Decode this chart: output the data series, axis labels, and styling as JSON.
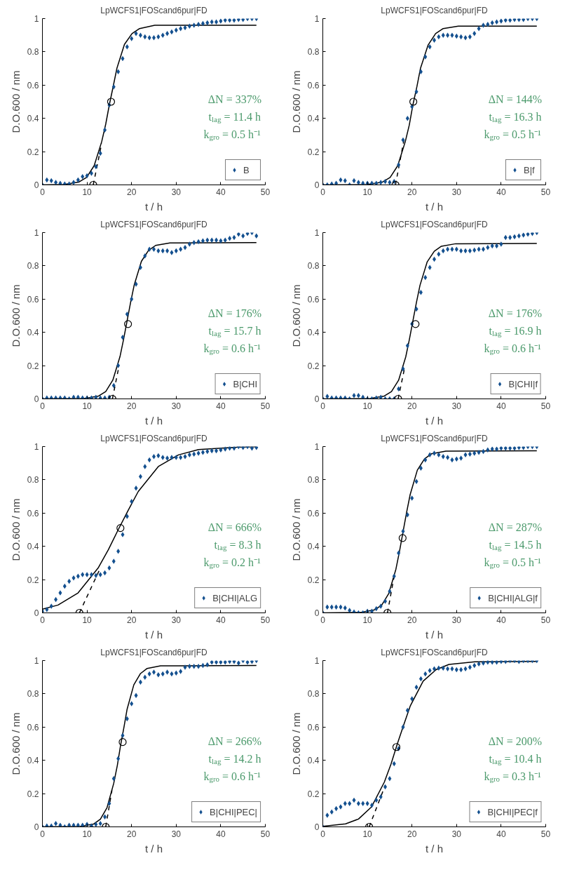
{
  "chart_data": [
    {
      "type": "scatter",
      "title": "LpWCFS1|FOScand6pur|FD",
      "xlabel": "t / h",
      "ylabel": "D.O.600 / nm",
      "xlim": [
        0,
        50
      ],
      "xticks": [
        0,
        10,
        20,
        30,
        40,
        50
      ],
      "ylim": [
        0,
        1
      ],
      "yticks": [
        0,
        0.2,
        0.4,
        0.6,
        0.8,
        1
      ],
      "grid": false,
      "legend": "bottom right",
      "annotations": [
        "ΔN = 337%",
        "t$_{lag}$ = 11.4 h",
        "k$_{gro}$ = 0.5 h⁻¹"
      ],
      "x": [
        0,
        1,
        2,
        3,
        4,
        5,
        6,
        7,
        8,
        9,
        10,
        11,
        12,
        13,
        14,
        15,
        16,
        17,
        18,
        19,
        20,
        21,
        22,
        23,
        24,
        25,
        26,
        27,
        28,
        29,
        30,
        31,
        32,
        33,
        34,
        35,
        36,
        37,
        38,
        39,
        40,
        41,
        42,
        43,
        44,
        45,
        46,
        47,
        48
      ],
      "series": [
        {
          "name": "B",
          "marker": "diamond",
          "color": "#14508f",
          "values": [
            0,
            0.03,
            0.025,
            0.015,
            0.01,
            0.005,
            0.005,
            0.015,
            0.03,
            0.05,
            0.055,
            0.07,
            0.11,
            0.19,
            0.33,
            0.48,
            0.59,
            0.68,
            0.76,
            0.83,
            0.88,
            0.91,
            0.9,
            0.89,
            0.885,
            0.885,
            0.89,
            0.9,
            0.91,
            0.92,
            0.93,
            0.94,
            0.945,
            0.955,
            0.96,
            0.965,
            0.97,
            0.975,
            0.98,
            0.98,
            0.985,
            0.99,
            0.99,
            0.99,
            0.995,
            0.995,
            1,
            1,
            1
          ]
        },
        {
          "type": "line",
          "color": "#000000",
          "line_style": "solid",
          "x": [
            0,
            4.8,
            8.2,
            9.9,
            11.6,
            13.3,
            14.2,
            15,
            15.9,
            16.7,
            18.4,
            20.1,
            21.8,
            25.2,
            48
          ],
          "values": [
            0,
            0.002,
            0.017,
            0.045,
            0.115,
            0.26,
            0.365,
            0.48,
            0.595,
            0.7,
            0.845,
            0.91,
            0.94,
            0.96,
            0.96
          ]
        },
        {
          "type": "line",
          "color": "#000000",
          "line_style": "dashed",
          "x": [
            11.4,
            13.3
          ],
          "values": [
            0,
            0.25
          ]
        },
        {
          "type": "scatter",
          "marker": "circle",
          "color": "#000000",
          "x": [
            11.4,
            15.4
          ],
          "values": [
            0,
            0.5
          ]
        }
      ]
    },
    {
      "type": "scatter",
      "title": "LpWCFS1|FOScand6pur|FD",
      "xlabel": "t / h",
      "ylabel": "D.O.600 / nm",
      "xlim": [
        0,
        50
      ],
      "xticks": [
        0,
        10,
        20,
        30,
        40,
        50
      ],
      "ylim": [
        0,
        1
      ],
      "yticks": [
        0,
        0.2,
        0.4,
        0.6,
        0.8,
        1
      ],
      "grid": false,
      "legend": "bottom right",
      "annotations": [
        "ΔN = 144%",
        "t$_{lag}$ = 16.3 h",
        "k$_{gro}$ = 0.5 h⁻¹"
      ],
      "x": [
        0,
        1,
        2,
        3,
        4,
        5,
        6,
        7,
        8,
        9,
        10,
        11,
        12,
        13,
        14,
        15,
        16,
        17,
        18,
        19,
        20,
        21,
        22,
        23,
        24,
        25,
        26,
        27,
        28,
        29,
        30,
        31,
        32,
        33,
        34,
        35,
        36,
        37,
        38,
        39,
        40,
        41,
        42,
        43,
        44,
        45,
        46,
        47,
        48
      ],
      "series": [
        {
          "name": "B|f",
          "marker": "diamond",
          "color": "#14508f",
          "values": [
            0,
            0,
            0.005,
            0.01,
            0.03,
            0.025,
            0,
            0.025,
            0.015,
            0.01,
            0.01,
            0.01,
            0.01,
            0.015,
            0.02,
            0.015,
            0.02,
            0.12,
            0.27,
            0.4,
            0.47,
            0.56,
            0.68,
            0.77,
            0.83,
            0.87,
            0.89,
            0.9,
            0.9,
            0.9,
            0.895,
            0.89,
            0.885,
            0.89,
            0.91,
            0.94,
            0.96,
            0.965,
            0.975,
            0.98,
            0.985,
            0.99,
            0.99,
            0.995,
            0.995,
            0.995,
            1,
            1,
            1
          ]
        },
        {
          "type": "line",
          "color": "#000000",
          "line_style": "solid",
          "x": [
            0,
            10,
            13.4,
            15.1,
            16.8,
            18.5,
            19.4,
            20.2,
            21.1,
            21.9,
            23.6,
            25.3,
            27,
            30.4,
            48
          ],
          "values": [
            0,
            0.002,
            0.017,
            0.045,
            0.115,
            0.26,
            0.36,
            0.48,
            0.59,
            0.7,
            0.84,
            0.91,
            0.94,
            0.955,
            0.955
          ]
        },
        {
          "type": "line",
          "color": "#000000",
          "line_style": "dashed",
          "x": [
            16.3,
            18.2
          ],
          "values": [
            0,
            0.27
          ]
        },
        {
          "type": "scatter",
          "marker": "circle",
          "color": "#000000",
          "x": [
            16.3,
            20.3
          ],
          "values": [
            0,
            0.5
          ]
        }
      ]
    },
    {
      "type": "scatter",
      "title": "LpWCFS1|FOScand6pur|FD",
      "xlabel": "t / h",
      "ylabel": "D.O.600 / nm",
      "xlim": [
        0,
        50
      ],
      "xticks": [
        0,
        10,
        20,
        30,
        40,
        50
      ],
      "ylim": [
        0,
        1
      ],
      "yticks": [
        0,
        0.2,
        0.4,
        0.6,
        0.8,
        1
      ],
      "grid": false,
      "legend": "bottom right",
      "annotations": [
        "ΔN = 176%",
        "t$_{lag}$ = 15.7 h",
        "k$_{gro}$ = 0.6 h⁻¹"
      ],
      "x": [
        0,
        1,
        2,
        3,
        4,
        5,
        6,
        7,
        8,
        9,
        10,
        11,
        12,
        13,
        14,
        15,
        16,
        17,
        18,
        19,
        20,
        21,
        22,
        23,
        24,
        25,
        26,
        27,
        28,
        29,
        30,
        31,
        32,
        33,
        34,
        35,
        36,
        37,
        38,
        39,
        40,
        41,
        42,
        43,
        44,
        45,
        46,
        47,
        48
      ],
      "series": [
        {
          "name": "B|CHI",
          "marker": "diamond",
          "color": "#14508f",
          "values": [
            0,
            0.005,
            0.005,
            0.005,
            0.005,
            0.005,
            0,
            0.01,
            0.01,
            0.005,
            0.005,
            0.005,
            0.01,
            0.005,
            0.005,
            0.01,
            0.08,
            0.2,
            0.37,
            0.51,
            0.6,
            0.69,
            0.79,
            0.86,
            0.9,
            0.9,
            0.89,
            0.89,
            0.89,
            0.88,
            0.89,
            0.9,
            0.91,
            0.93,
            0.94,
            0.945,
            0.95,
            0.955,
            0.955,
            0.955,
            0.95,
            0.955,
            0.965,
            0.97,
            0.99,
            0.98,
            0.995,
            1,
            0.98
          ]
        },
        {
          "type": "line",
          "color": "#000000",
          "line_style": "solid",
          "x": [
            0,
            9.4,
            12.6,
            14.2,
            15.8,
            17.4,
            18.2,
            19,
            19.8,
            20.6,
            22.2,
            23.8,
            25.4,
            28.6,
            48
          ],
          "values": [
            0,
            0.002,
            0.017,
            0.044,
            0.113,
            0.254,
            0.357,
            0.47,
            0.583,
            0.686,
            0.827,
            0.893,
            0.923,
            0.938,
            0.94
          ]
        },
        {
          "type": "line",
          "color": "#000000",
          "line_style": "dashed",
          "x": [
            15.7,
            17.2
          ],
          "values": [
            0,
            0.2
          ]
        },
        {
          "type": "scatter",
          "marker": "circle",
          "color": "#000000",
          "x": [
            15.7,
            19.2
          ],
          "values": [
            0,
            0.45
          ]
        }
      ]
    },
    {
      "type": "scatter",
      "title": "LpWCFS1|FOScand6pur|FD",
      "xlabel": "t / h",
      "ylabel": "D.O.600 / nm",
      "xlim": [
        0,
        50
      ],
      "xticks": [
        0,
        10,
        20,
        30,
        40,
        50
      ],
      "ylim": [
        0,
        1
      ],
      "yticks": [
        0,
        0.2,
        0.4,
        0.6,
        0.8,
        1
      ],
      "grid": false,
      "legend": "bottom right",
      "annotations": [
        "ΔN = 176%",
        "t$_{lag}$ = 16.9 h",
        "k$_{gro}$ = 0.6 h⁻¹"
      ],
      "x": [
        0,
        1,
        2,
        3,
        4,
        5,
        6,
        7,
        8,
        9,
        10,
        11,
        12,
        13,
        14,
        15,
        16,
        17,
        18,
        19,
        20,
        21,
        22,
        23,
        24,
        25,
        26,
        27,
        28,
        29,
        30,
        31,
        32,
        33,
        34,
        35,
        36,
        37,
        38,
        39,
        40,
        41,
        42,
        43,
        44,
        45,
        46,
        47,
        48
      ],
      "series": [
        {
          "name": "B|CHI|f",
          "marker": "diamond",
          "color": "#14508f",
          "values": [
            0,
            0.015,
            0.005,
            0.005,
            0.005,
            0.005,
            0,
            0.02,
            0.02,
            0.01,
            0,
            0,
            0.005,
            0.01,
            0,
            0,
            0,
            0.06,
            0.18,
            0.32,
            0.45,
            0.54,
            0.64,
            0.73,
            0.79,
            0.84,
            0.87,
            0.89,
            0.9,
            0.9,
            0.9,
            0.89,
            0.89,
            0.89,
            0.895,
            0.9,
            0.9,
            0.91,
            0.92,
            0.92,
            0.93,
            0.97,
            0.97,
            0.975,
            0.98,
            0.985,
            0.99,
            0.995,
            1
          ]
        },
        {
          "type": "line",
          "color": "#000000",
          "line_style": "solid",
          "x": [
            0,
            10.6,
            13.8,
            15.4,
            17,
            18.6,
            19.4,
            20.2,
            21,
            21.8,
            23.4,
            25,
            26.6,
            29.8,
            48
          ],
          "values": [
            0,
            0.002,
            0.017,
            0.044,
            0.112,
            0.252,
            0.355,
            0.468,
            0.58,
            0.683,
            0.823,
            0.888,
            0.918,
            0.933,
            0.935
          ]
        },
        {
          "type": "line",
          "color": "#000000",
          "line_style": "dashed",
          "x": [
            16.9,
            18.3
          ],
          "values": [
            0,
            0.18
          ]
        },
        {
          "type": "scatter",
          "marker": "circle",
          "color": "#000000",
          "x": [
            16.9,
            20.8
          ],
          "values": [
            0,
            0.45
          ]
        }
      ]
    },
    {
      "type": "scatter",
      "title": "LpWCFS1|FOScand6pur|FD",
      "xlabel": "t / h",
      "ylabel": "D.O.600 / nm",
      "xlim": [
        0,
        50
      ],
      "xticks": [
        0,
        10,
        20,
        30,
        40,
        50
      ],
      "ylim": [
        0,
        1
      ],
      "yticks": [
        0,
        0.2,
        0.4,
        0.6,
        0.8,
        1
      ],
      "grid": false,
      "legend": "bottom right",
      "annotations": [
        "ΔN = 666%",
        "t$_{lag}$ = 8.3 h",
        "k$_{gro}$ = 0.2 h⁻¹"
      ],
      "x": [
        0,
        1,
        2,
        3,
        4,
        5,
        6,
        7,
        8,
        9,
        10,
        11,
        12,
        13,
        14,
        15,
        16,
        17,
        18,
        19,
        20,
        21,
        22,
        23,
        24,
        25,
        26,
        27,
        28,
        29,
        30,
        31,
        32,
        33,
        34,
        35,
        36,
        37,
        38,
        39,
        40,
        41,
        42,
        43,
        44,
        45,
        46,
        47,
        48
      ],
      "series": [
        {
          "name": "B|CHI|ALG",
          "marker": "diamond",
          "color": "#14508f",
          "values": [
            0.01,
            0.02,
            0.04,
            0.08,
            0.12,
            0.16,
            0.19,
            0.21,
            0.22,
            0.23,
            0.23,
            0.23,
            0.225,
            0.23,
            0.24,
            0.27,
            0.31,
            0.37,
            0.47,
            0.58,
            0.67,
            0.75,
            0.82,
            0.88,
            0.92,
            0.94,
            0.945,
            0.935,
            0.93,
            0.935,
            0.935,
            0.935,
            0.94,
            0.95,
            0.955,
            0.96,
            0.965,
            0.97,
            0.975,
            0.975,
            0.98,
            0.985,
            0.99,
            0.99,
            1,
            0.995,
            1,
            0.99,
            0.995
          ]
        },
        {
          "type": "line",
          "color": "#000000",
          "line_style": "solid",
          "x": [
            0,
            3.5,
            8,
            12.5,
            14.8,
            17,
            19.3,
            21.5,
            26,
            30.5,
            35,
            44,
            48
          ],
          "values": [
            0.022,
            0.047,
            0.12,
            0.27,
            0.38,
            0.5,
            0.62,
            0.73,
            0.88,
            0.95,
            0.982,
            0.997,
            0.999
          ]
        },
        {
          "type": "line",
          "color": "#000000",
          "line_style": "dashed",
          "x": [
            8.3,
            13
          ],
          "values": [
            0,
            0.27
          ]
        },
        {
          "type": "scatter",
          "marker": "circle",
          "color": "#000000",
          "x": [
            8.3,
            17.5
          ],
          "values": [
            0,
            0.51
          ]
        }
      ]
    },
    {
      "type": "scatter",
      "title": "LpWCFS1|FOScand6pur|FD",
      "xlabel": "t / h",
      "ylabel": "D.O.600 / nm",
      "xlim": [
        0,
        50
      ],
      "xticks": [
        0,
        10,
        20,
        30,
        40,
        50
      ],
      "ylim": [
        0,
        1
      ],
      "yticks": [
        0,
        0.2,
        0.4,
        0.6,
        0.8,
        1
      ],
      "grid": false,
      "legend": "bottom right",
      "annotations": [
        "ΔN = 287%",
        "t$_{lag}$ = 14.5 h",
        "k$_{gro}$ = 0.5 h⁻¹"
      ],
      "x": [
        0,
        1,
        2,
        3,
        4,
        5,
        6,
        7,
        8,
        9,
        10,
        11,
        12,
        13,
        14,
        15,
        16,
        17,
        18,
        19,
        20,
        21,
        22,
        23,
        24,
        25,
        26,
        27,
        28,
        29,
        30,
        31,
        32,
        33,
        34,
        35,
        36,
        37,
        38,
        39,
        40,
        41,
        42,
        43,
        44,
        45,
        46,
        47,
        48
      ],
      "series": [
        {
          "name": "B|CHI|ALG|f",
          "marker": "diamond",
          "color": "#14508f",
          "values": [
            0,
            0.035,
            0.035,
            0.035,
            0.035,
            0.03,
            0.015,
            0.005,
            0,
            0,
            0.01,
            0.01,
            0.025,
            0.04,
            0.07,
            0.13,
            0.22,
            0.36,
            0.49,
            0.59,
            0.69,
            0.79,
            0.87,
            0.92,
            0.95,
            0.96,
            0.95,
            0.94,
            0.935,
            0.92,
            0.925,
            0.93,
            0.95,
            0.955,
            0.96,
            0.965,
            0.97,
            0.98,
            0.985,
            0.985,
            0.99,
            0.99,
            0.99,
            0.99,
            0.995,
            0.995,
            1,
            1,
            1
          ]
        },
        {
          "type": "line",
          "color": "#000000",
          "line_style": "solid",
          "x": [
            0,
            8.4,
            11.6,
            13.2,
            14.8,
            16.4,
            17.2,
            18,
            18.8,
            19.6,
            21.2,
            22.8,
            24.4,
            27.6,
            48
          ],
          "values": [
            0,
            0.002,
            0.018,
            0.046,
            0.117,
            0.263,
            0.37,
            0.488,
            0.605,
            0.712,
            0.858,
            0.926,
            0.957,
            0.973,
            0.975
          ]
        },
        {
          "type": "line",
          "color": "#000000",
          "line_style": "dashed",
          "x": [
            14.5,
            16
          ],
          "values": [
            0,
            0.22
          ]
        },
        {
          "type": "scatter",
          "marker": "circle",
          "color": "#000000",
          "x": [
            14.5,
            17.9
          ],
          "values": [
            0,
            0.45
          ]
        }
      ]
    },
    {
      "type": "scatter",
      "title": "LpWCFS1|FOScand6pur|FD",
      "xlabel": "t / h",
      "ylabel": "D.O.600 / nm",
      "xlim": [
        0,
        50
      ],
      "xticks": [
        0,
        10,
        20,
        30,
        40,
        50
      ],
      "ylim": [
        0,
        1
      ],
      "yticks": [
        0,
        0.2,
        0.4,
        0.6,
        0.8,
        1
      ],
      "grid": false,
      "legend": "bottom right",
      "annotations": [
        "ΔN = 266%",
        "t$_{lag}$ = 14.2 h",
        "k$_{gro}$ = 0.6 h⁻¹"
      ],
      "x": [
        0,
        1,
        2,
        3,
        4,
        5,
        6,
        7,
        8,
        9,
        10,
        11,
        12,
        13,
        14,
        15,
        16,
        17,
        18,
        19,
        20,
        21,
        22,
        23,
        24,
        25,
        26,
        27,
        28,
        29,
        30,
        31,
        32,
        33,
        34,
        35,
        36,
        37,
        38,
        39,
        40,
        41,
        42,
        43,
        44,
        45,
        46,
        47,
        48
      ],
      "series": [
        {
          "name": "B|CHI|PEC|",
          "marker": "diamond",
          "color": "#14508f",
          "values": [
            0,
            0.005,
            0.005,
            0.02,
            0.01,
            0,
            0.01,
            0.01,
            0.01,
            0.01,
            0.015,
            0.005,
            0.015,
            0.02,
            0.06,
            0.14,
            0.29,
            0.41,
            0.55,
            0.65,
            0.74,
            0.79,
            0.87,
            0.9,
            0.92,
            0.93,
            0.915,
            0.92,
            0.93,
            0.92,
            0.925,
            0.935,
            0.96,
            0.965,
            0.965,
            0.965,
            0.97,
            0.975,
            0.99,
            0.99,
            0.99,
            0.99,
            0.995,
            0.995,
            0.985,
            1,
            0.99,
            0.995,
            1
          ]
        },
        {
          "type": "line",
          "color": "#000000",
          "line_style": "solid",
          "x": [
            0,
            8.5,
            11.5,
            13,
            14.5,
            16,
            16.8,
            17.5,
            18.3,
            19,
            20.5,
            22,
            23.5,
            26.5,
            48
          ],
          "values": [
            0,
            0.002,
            0.017,
            0.046,
            0.116,
            0.262,
            0.369,
            0.485,
            0.601,
            0.708,
            0.854,
            0.922,
            0.953,
            0.968,
            0.97
          ]
        },
        {
          "type": "line",
          "color": "#000000",
          "line_style": "dashed",
          "x": [
            14.2,
            15.6
          ],
          "values": [
            0,
            0.22
          ]
        },
        {
          "type": "scatter",
          "marker": "circle",
          "color": "#000000",
          "x": [
            14.2,
            18
          ],
          "values": [
            0,
            0.51
          ]
        }
      ]
    },
    {
      "type": "scatter",
      "title": "LpWCFS1|FOScand6pur|FD",
      "xlabel": "t / h",
      "ylabel": "D.O.600 / nm",
      "xlim": [
        0,
        50
      ],
      "xticks": [
        0,
        10,
        20,
        30,
        40,
        50
      ],
      "ylim": [
        0,
        1
      ],
      "yticks": [
        0,
        0.2,
        0.4,
        0.6,
        0.8,
        1
      ],
      "grid": false,
      "legend": "bottom right",
      "annotations": [
        "ΔN = 200%",
        "t$_{lag}$ = 10.4 h",
        "k$_{gro}$ = 0.3 h⁻¹"
      ],
      "x": [
        0,
        1,
        2,
        3,
        4,
        5,
        6,
        7,
        8,
        9,
        10,
        11,
        12,
        13,
        14,
        15,
        16,
        17,
        18,
        19,
        20,
        21,
        22,
        23,
        24,
        25,
        26,
        27,
        28,
        29,
        30,
        31,
        32,
        33,
        34,
        35,
        36,
        37,
        38,
        39,
        40,
        41,
        42,
        43,
        44,
        45,
        46,
        47,
        48
      ],
      "series": [
        {
          "name": "B|CHI|PEC|f",
          "marker": "diamond",
          "color": "#14508f",
          "values": [
            0,
            0.07,
            0.09,
            0.11,
            0.12,
            0.14,
            0.14,
            0.16,
            0.14,
            0.14,
            0.14,
            0.13,
            0.16,
            0.18,
            0.24,
            0.29,
            0.38,
            0.47,
            0.6,
            0.7,
            0.77,
            0.84,
            0.89,
            0.92,
            0.94,
            0.95,
            0.955,
            0.955,
            0.95,
            0.95,
            0.945,
            0.945,
            0.95,
            0.96,
            0.97,
            0.98,
            0.985,
            0.99,
            0.99,
            0.99,
            0.995,
            0.995,
            1,
            1,
            0.995,
            1,
            1,
            1,
            1
          ]
        },
        {
          "type": "line",
          "color": "#000000",
          "line_style": "solid",
          "x": [
            0,
            5.1,
            8,
            10.9,
            13.8,
            15.3,
            16.7,
            18.2,
            19.6,
            22.5,
            25.4,
            28.3,
            34.1,
            48
          ],
          "values": [
            0.003,
            0.018,
            0.047,
            0.119,
            0.269,
            0.378,
            0.498,
            0.617,
            0.726,
            0.876,
            0.945,
            0.977,
            0.993,
            0.995
          ]
        },
        {
          "type": "line",
          "color": "#000000",
          "line_style": "dashed",
          "x": [
            10.4,
            14
          ],
          "values": [
            0,
            0.25
          ]
        },
        {
          "type": "scatter",
          "marker": "circle",
          "color": "#000000",
          "x": [
            10.4,
            16.5
          ],
          "values": [
            0,
            0.48
          ]
        }
      ]
    }
  ]
}
